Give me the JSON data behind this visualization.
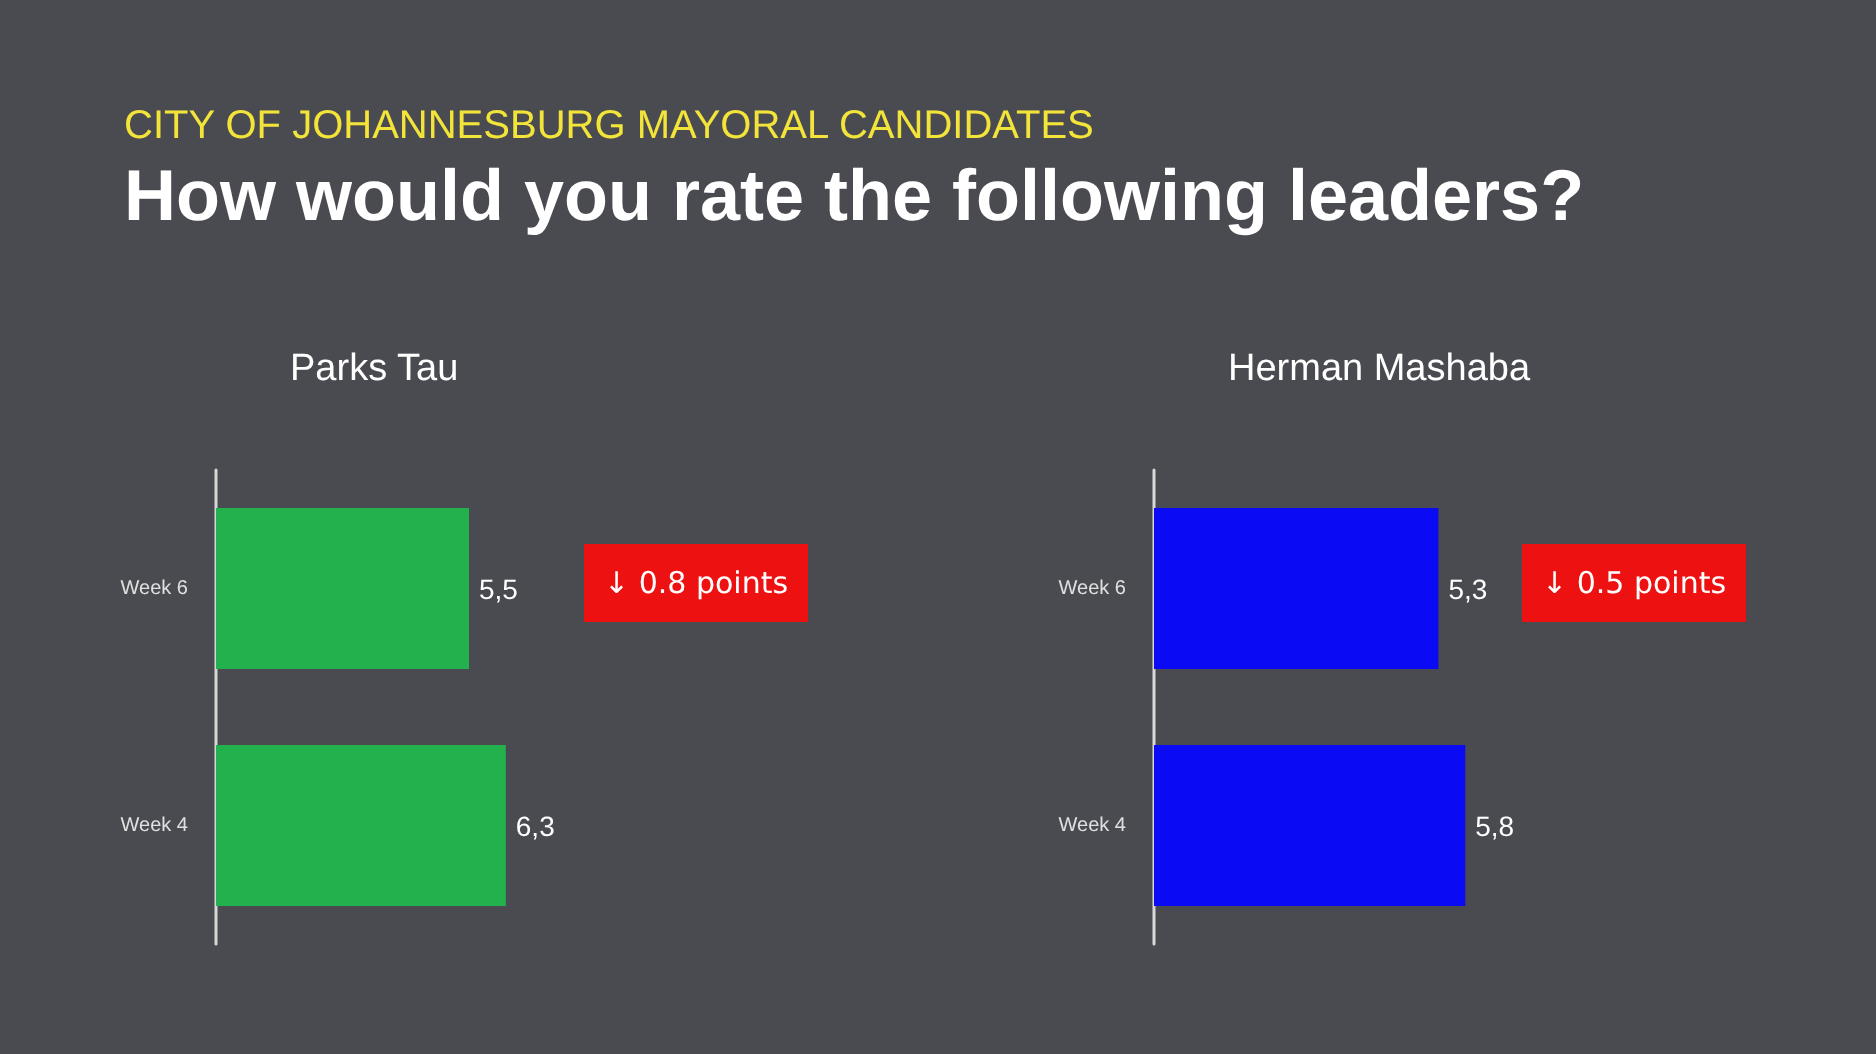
{
  "chart_data": [
    {
      "type": "other",
      "title": "How would you rate the following leaders?",
      "subtitle": "CITY OF JOHANNESBURG MAYORAL CANDIDATES"
    },
    {
      "type": "bar",
      "orientation": "horizontal",
      "title": "Parks Tau",
      "categories": [
        "Week 6",
        "Week 4"
      ],
      "values": [
        5.5,
        6.3
      ],
      "value_labels": [
        "5,5",
        "6,3"
      ],
      "color": "#22b14c",
      "annotations": [
        "↓ 0.8 points"
      ]
    },
    {
      "type": "bar",
      "orientation": "horizontal",
      "title": "Herman Mashaba",
      "categories": [
        "Week 6",
        "Week 4"
      ],
      "values": [
        5.3,
        5.8
      ],
      "value_labels": [
        "5,3",
        "5,8"
      ],
      "color": "#0a0af5",
      "annotations": [
        "↓ 0.5 points"
      ]
    }
  ]
}
